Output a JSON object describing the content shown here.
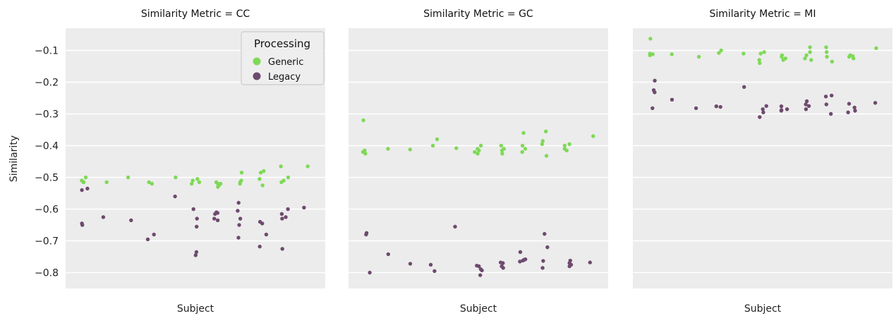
{
  "chart_data": {
    "type": "scatter",
    "ylabel": "Similarity",
    "ylim": [
      -0.85,
      -0.03
    ],
    "yticks": [
      -0.1,
      -0.2,
      -0.3,
      -0.4,
      -0.5,
      -0.6,
      -0.7,
      -0.8
    ],
    "ytick_labels": [
      "−0.1",
      "−0.2",
      "−0.3",
      "−0.4",
      "−0.5",
      "−0.6",
      "−0.7",
      "−0.8"
    ],
    "grid": true,
    "legend": {
      "title": "Processing",
      "placement": "top-right of first panel",
      "entries": [
        {
          "label": "Generic",
          "color": "#7ed957"
        },
        {
          "label": "Legacy",
          "color": "#6e4a6e"
        }
      ]
    },
    "series_colors": {
      "Generic": "#7ed957",
      "Legacy": "#6e4a6e"
    },
    "panels": [
      {
        "title": "Similarity Metric = CC",
        "xlabel": "Subject",
        "subjects": [
          {
            "generic": [
              -0.5,
              -0.515,
              -0.515,
              -0.51
            ],
            "legacy": [
              -0.535,
              -0.54,
              -0.645,
              -0.65
            ]
          },
          {
            "generic": [
              -0.515
            ],
            "legacy": [
              -0.625
            ]
          },
          {
            "generic": [
              -0.5
            ],
            "legacy": [
              -0.635
            ]
          },
          {
            "generic": [
              -0.515,
              -0.52
            ],
            "legacy": [
              -0.695,
              -0.68
            ]
          },
          {
            "generic": [
              -0.5
            ],
            "legacy": [
              -0.56
            ]
          },
          {
            "generic": [
              -0.505,
              -0.51,
              -0.515,
              -0.52
            ],
            "legacy": [
              -0.655,
              -0.6,
              -0.735,
              -0.745,
              -0.63
            ]
          },
          {
            "generic": [
              -0.52,
              -0.525,
              -0.53,
              -0.52,
              -0.515
            ],
            "legacy": [
              -0.61,
              -0.615,
              -0.635,
              -0.63,
              -0.612
            ]
          },
          {
            "generic": [
              -0.515,
              -0.51,
              -0.52,
              -0.485
            ],
            "legacy": [
              -0.58,
              -0.605,
              -0.65,
              -0.63,
              -0.69
            ]
          },
          {
            "generic": [
              -0.525,
              -0.505,
              -0.485,
              -0.48
            ],
            "legacy": [
              -0.718,
              -0.68,
              -0.64,
              -0.645
            ]
          },
          {
            "generic": [
              -0.465,
              -0.5,
              -0.51,
              -0.515
            ],
            "legacy": [
              -0.63,
              -0.6,
              -0.625,
              -0.615,
              -0.725
            ]
          },
          {
            "generic": [
              -0.465
            ],
            "legacy": [
              -0.595
            ]
          }
        ]
      },
      {
        "title": "Similarity Metric = GC",
        "xlabel": "Subject",
        "subjects": [
          {
            "generic": [
              -0.32,
              -0.415,
              -0.425,
              -0.42
            ],
            "legacy": [
              -0.8,
              -0.68,
              -0.675
            ]
          },
          {
            "generic": [
              -0.41
            ],
            "legacy": [
              -0.742
            ]
          },
          {
            "generic": [
              -0.412
            ],
            "legacy": [
              -0.772
            ]
          },
          {
            "generic": [
              -0.38,
              -0.4
            ],
            "legacy": [
              -0.775,
              -0.795
            ]
          },
          {
            "generic": [
              -0.408
            ],
            "legacy": [
              -0.655
            ]
          },
          {
            "generic": [
              -0.415,
              -0.42,
              -0.425,
              -0.4,
              -0.41
            ],
            "legacy": [
              -0.78,
              -0.778,
              -0.793,
              -0.808,
              -0.789
            ]
          },
          {
            "generic": [
              -0.4,
              -0.415,
              -0.425,
              -0.41
            ],
            "legacy": [
              -0.77,
              -0.785,
              -0.78,
              -0.768
            ]
          },
          {
            "generic": [
              -0.36,
              -0.4,
              -0.42,
              -0.41
            ],
            "legacy": [
              -0.735,
              -0.76,
              -0.762,
              -0.765,
              -0.758
            ]
          },
          {
            "generic": [
              -0.355,
              -0.385,
              -0.395,
              -0.432
            ],
            "legacy": [
              -0.763,
              -0.785,
              -0.72,
              -0.678
            ]
          },
          {
            "generic": [
              -0.415,
              -0.41,
              -0.4,
              -0.395
            ],
            "legacy": [
              -0.762,
              -0.78,
              -0.775,
              -0.77
            ]
          },
          {
            "generic": [
              -0.37
            ],
            "legacy": [
              -0.768
            ]
          }
        ]
      },
      {
        "title": "Similarity Metric = MI",
        "xlabel": "Subject",
        "subjects": [
          {
            "generic": [
              -0.063,
              -0.11,
              -0.115,
              -0.112
            ],
            "legacy": [
              -0.195,
              -0.225,
              -0.232,
              -0.282
            ]
          },
          {
            "generic": [
              -0.112
            ],
            "legacy": [
              -0.255
            ]
          },
          {
            "generic": [
              -0.12
            ],
            "legacy": [
              -0.282
            ]
          },
          {
            "generic": [
              -0.108,
              -0.1
            ],
            "legacy": [
              -0.278,
              -0.276
            ]
          },
          {
            "generic": [
              -0.11
            ],
            "legacy": [
              -0.215
            ]
          },
          {
            "generic": [
              -0.105,
              -0.11,
              -0.13,
              -0.14
            ],
            "legacy": [
              -0.275,
              -0.295,
              -0.31,
              -0.285
            ]
          },
          {
            "generic": [
              -0.115,
              -0.12,
              -0.13,
              -0.125
            ],
            "legacy": [
              -0.276,
              -0.288,
              -0.29,
              -0.285
            ]
          },
          {
            "generic": [
              -0.09,
              -0.105,
              -0.115,
              -0.125,
              -0.13
            ],
            "legacy": [
              -0.26,
              -0.27,
              -0.275,
              -0.285
            ]
          },
          {
            "generic": [
              -0.09,
              -0.105,
              -0.12,
              -0.135
            ],
            "legacy": [
              -0.245,
              -0.242,
              -0.27,
              -0.3
            ]
          },
          {
            "generic": [
              -0.115,
              -0.12,
              -0.125,
              -0.118
            ],
            "legacy": [
              -0.268,
              -0.28,
              -0.29,
              -0.295
            ]
          },
          {
            "generic": [
              -0.093
            ],
            "legacy": [
              -0.265
            ]
          }
        ]
      }
    ]
  }
}
